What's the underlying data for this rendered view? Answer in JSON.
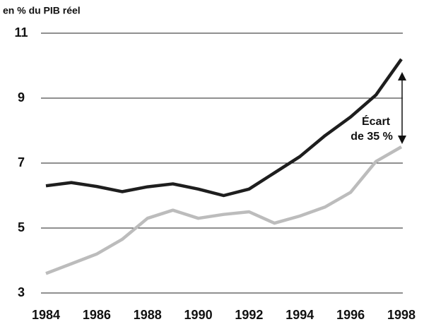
{
  "chart_data": {
    "type": "line",
    "y_label": "en % du PIB réel",
    "x": [
      1984,
      1985,
      1986,
      1987,
      1988,
      1989,
      1990,
      1991,
      1992,
      1993,
      1994,
      1995,
      1996,
      1997,
      1998
    ],
    "series": [
      {
        "color": "#1e1e1e",
        "values": [
          6.3,
          6.4,
          6.28,
          6.12,
          6.27,
          6.36,
          6.2,
          6.0,
          6.2,
          6.7,
          7.2,
          7.85,
          8.42,
          9.1,
          10.2
        ]
      },
      {
        "color": "#bcbcbc",
        "values": [
          3.6,
          3.9,
          4.2,
          4.65,
          5.3,
          5.55,
          5.3,
          5.42,
          5.5,
          5.15,
          5.37,
          5.65,
          6.1,
          7.05,
          7.5
        ]
      }
    ],
    "xlim": [
      1984,
      1998
    ],
    "xticks": [
      1984,
      1986,
      1988,
      1990,
      1992,
      1994,
      1996,
      1998
    ],
    "ylim": [
      3,
      11
    ],
    "yticks": [
      3,
      5,
      7,
      9,
      11
    ],
    "grid": true,
    "annotation": [
      "Écart",
      "de 35 %"
    ]
  }
}
